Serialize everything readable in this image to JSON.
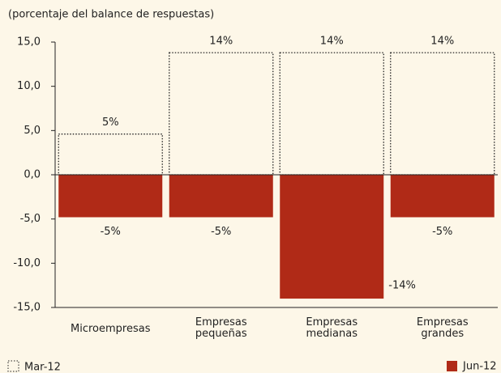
{
  "chart_data": {
    "type": "bar",
    "subtitle": "(porcentaje del balance de respuestas)",
    "categories": [
      "Microempresas",
      "Empresas\npequeñas",
      "Empresas\nmedianas",
      "Empresas\ngrandes"
    ],
    "series": [
      {
        "name": "Mar-12",
        "color": "#222222",
        "style": "dotted",
        "values": [
          4.6,
          13.8,
          13.8,
          13.8
        ],
        "value_labels": [
          "5%",
          "14%",
          "14%",
          "14%"
        ]
      },
      {
        "name": "Jun-12",
        "color": "#b02a17",
        "style": "filled",
        "values": [
          -4.8,
          -4.8,
          -14,
          -4.8
        ],
        "value_labels": [
          "-5%",
          "-5%",
          "-14%",
          "-5%"
        ]
      }
    ],
    "ylim": [
      -15,
      15
    ],
    "yticks": [
      {
        "value": 15,
        "label": "15,0"
      },
      {
        "value": 10,
        "label": "10,0"
      },
      {
        "value": 5,
        "label": "5,0"
      },
      {
        "value": 0,
        "label": "0,0"
      },
      {
        "value": -5,
        "label": "-5,0"
      },
      {
        "value": -10,
        "label": "-10,0"
      },
      {
        "value": -15,
        "label": "-15,0"
      }
    ]
  }
}
